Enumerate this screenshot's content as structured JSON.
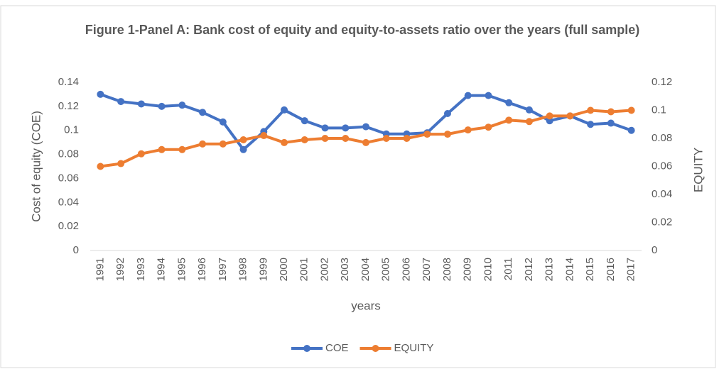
{
  "chart_data": {
    "type": "line",
    "title": "Figure 1-Panel A: Bank cost  of equity and equity-to-assets ratio over the years (full sample)",
    "x_label": "years",
    "y_label": "Cost of equity (COE)",
    "y2_label": "EQUITY",
    "categories": [
      "1991",
      "1992",
      "1993",
      "1994",
      "1995",
      "1996",
      "1997",
      "1998",
      "1999",
      "2000",
      "2001",
      "2002",
      "2003",
      "2004",
      "2005",
      "2006",
      "2007",
      "2008",
      "2009",
      "2010",
      "2011",
      "2012",
      "2013",
      "2014",
      "2015",
      "2016",
      "2017"
    ],
    "series": [
      {
        "name": "COE",
        "color": "#4472c4",
        "values": [
          0.13,
          0.124,
          0.122,
          0.12,
          0.121,
          0.115,
          0.107,
          0.084,
          0.099,
          0.117,
          0.108,
          0.102,
          0.102,
          0.103,
          0.097,
          0.097,
          0.098,
          0.114,
          0.129,
          0.129,
          0.123,
          0.117,
          0.108,
          0.112,
          0.105,
          0.106,
          0.1
        ]
      },
      {
        "name": "EQUITY",
        "color": "#ed7d31",
        "axis": "y2",
        "values": [
          0.06,
          0.062,
          0.069,
          0.072,
          0.072,
          0.076,
          0.076,
          0.079,
          0.082,
          0.077,
          0.079,
          0.08,
          0.08,
          0.077,
          0.08,
          0.08,
          0.083,
          0.083,
          0.086,
          0.088,
          0.093,
          0.092,
          0.096,
          0.096,
          0.1,
          0.099,
          0.1
        ]
      }
    ],
    "ylim": [
      0,
      0.14
    ],
    "yticks": [
      0,
      0.02,
      0.04,
      0.06,
      0.08,
      0.1,
      0.12,
      0.14
    ],
    "y2lim": [
      0,
      0.12
    ],
    "y2ticks": [
      0,
      0.02,
      0.04,
      0.06,
      0.08,
      0.1,
      0.12
    ],
    "legend": "bottom"
  }
}
